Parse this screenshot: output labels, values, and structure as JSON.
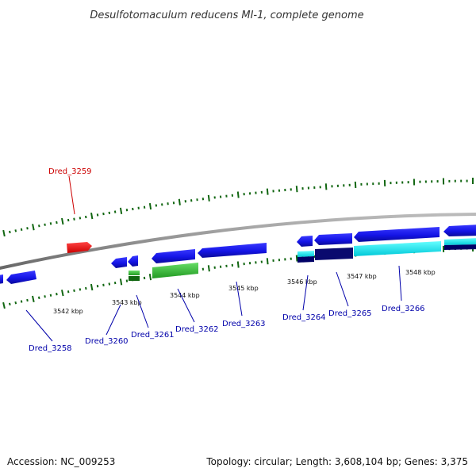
{
  "title": "Desulfotomaculum reducens MI-1, complete genome",
  "footer": {
    "accession": "Accession: NC_009253",
    "summary": "Topology: circular; Length: 3,608,104 bp; Genes: 3,375"
  },
  "scale_labels": [
    "3542 kbp",
    "3543 kbp",
    "3544 kbp",
    "3545 kbp",
    "3546 kbp",
    "3547 kbp",
    "3548 kbp"
  ],
  "genes": [
    {
      "name": "Dred_3258",
      "color": "#0000aa"
    },
    {
      "name": "Dred_3259",
      "color": "#cc0000"
    },
    {
      "name": "Dred_3260",
      "color": "#0000aa"
    },
    {
      "name": "Dred_3261",
      "color": "#0000aa"
    },
    {
      "name": "Dred_3262",
      "color": "#0000aa"
    },
    {
      "name": "Dred_3263",
      "color": "#0000aa"
    },
    {
      "name": "Dred_3264",
      "color": "#0000aa"
    },
    {
      "name": "Dred_3265",
      "color": "#0000aa"
    },
    {
      "name": "Dred_3266",
      "color": "#0000aa"
    }
  ],
  "colors": {
    "backbone": "#888888",
    "forward_feature": "#1a1aee",
    "highlight_feature": "#ee2222",
    "rna_feature": "#33bb33",
    "cyan_feature": "#00e5ee",
    "navy_feature": "#000066",
    "tick": "#116611"
  }
}
